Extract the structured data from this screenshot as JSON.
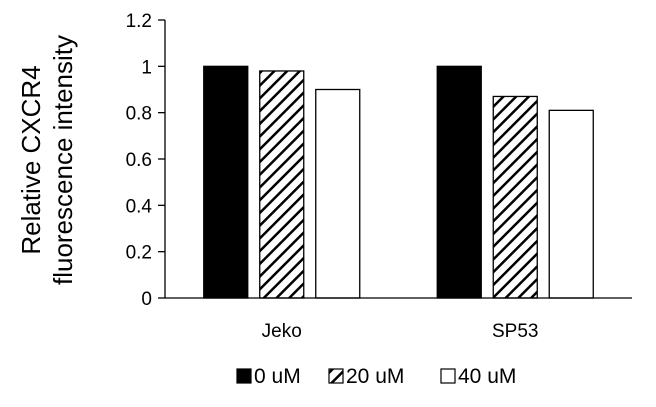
{
  "chart_data": {
    "type": "bar",
    "title": "",
    "xlabel": "",
    "ylabel_lines": [
      "Relative CXCR4",
      "fluorescence intensity"
    ],
    "categories": [
      "Jeko",
      "SP53"
    ],
    "ylim": [
      0,
      1.2
    ],
    "yticks": [
      0,
      0.2,
      0.4,
      0.6,
      0.8,
      1,
      1.2
    ],
    "ytick_labels": [
      "0",
      "0.2",
      "0.4",
      "0.6",
      "0.8",
      "1",
      "1.2"
    ],
    "grid": false,
    "legend_position": "bottom",
    "series": [
      {
        "name": "0 uM",
        "values": [
          1.0,
          1.0
        ],
        "fill": "solid",
        "color": "#000000"
      },
      {
        "name": "20 uM",
        "values": [
          0.98,
          0.87
        ],
        "fill": "hatch",
        "color": "#000000"
      },
      {
        "name": "40 uM",
        "values": [
          0.9,
          0.81
        ],
        "fill": "empty",
        "color": "#000000"
      }
    ]
  }
}
